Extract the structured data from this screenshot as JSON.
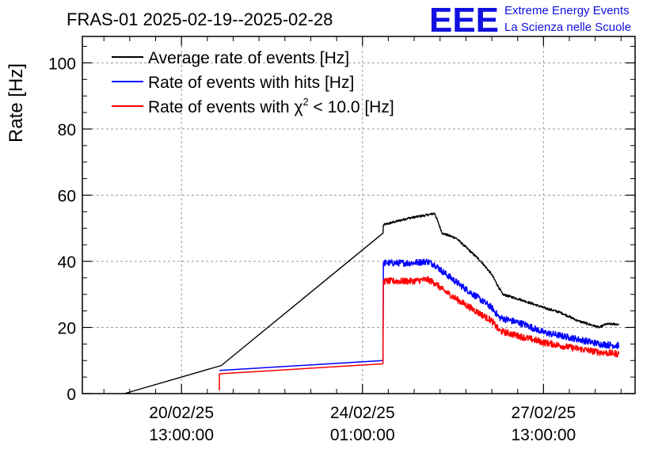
{
  "header": {
    "title": "FRAS-01 2025-02-19--2025-02-28",
    "logo_mark": "EEE",
    "logo_line1": "Extreme Energy Events",
    "logo_line2": "La Scienza nelle Scuole",
    "logo_color": "#1010e0"
  },
  "chart_data": {
    "type": "line",
    "ylabel": "Rate [Hz]",
    "ylim": [
      0,
      108
    ],
    "yticks": [
      0,
      20,
      40,
      60,
      80,
      100
    ],
    "xlim_hours": [
      0,
      256.5
    ],
    "xticks": [
      {
        "label_date": "20/02/25",
        "label_time": "13:00:00",
        "hours": 46
      },
      {
        "label_date": "24/02/25",
        "label_time": "01:00:00",
        "hours": 130
      },
      {
        "label_date": "27/02/25",
        "label_time": "13:00:00",
        "hours": 214
      }
    ],
    "grid": true,
    "legend_position": "top-left",
    "series": [
      {
        "name": "Average rate of events [Hz]",
        "name_pre": "Rate of events with ",
        "color": "#000000",
        "points": [
          [
            19.5,
            0
          ],
          [
            64.5,
            8.5
          ],
          [
            139.5,
            48.5
          ],
          [
            139.7,
            51
          ],
          [
            151,
            53
          ],
          [
            160,
            54
          ],
          [
            163.5,
            54.5
          ],
          [
            167,
            48.5
          ],
          [
            173.5,
            47
          ],
          [
            185,
            40
          ],
          [
            190,
            36
          ],
          [
            195,
            30
          ],
          [
            203,
            28.5
          ],
          [
            214,
            26
          ],
          [
            222,
            24.5
          ],
          [
            230,
            22
          ],
          [
            240,
            20
          ],
          [
            243,
            21
          ],
          [
            249,
            21
          ]
        ],
        "noise": 0.35
      },
      {
        "name": "Rate of events with hits [Hz]",
        "color": "#0000ff",
        "points": [
          [
            63.6,
            7
          ],
          [
            139.5,
            10
          ],
          [
            139.7,
            39.5
          ],
          [
            153,
            39.5
          ],
          [
            160,
            40
          ],
          [
            163.5,
            39
          ],
          [
            167,
            37
          ],
          [
            175,
            33
          ],
          [
            190,
            26
          ],
          [
            193.5,
            23
          ],
          [
            205,
            21
          ],
          [
            214,
            18.5
          ],
          [
            226,
            17
          ],
          [
            240,
            15
          ],
          [
            249,
            14.5
          ]
        ],
        "noise": 1.0
      },
      {
        "name": "Rate of events with χ² < 10.0 [Hz]",
        "color": "#ff0000",
        "points": [
          [
            63.6,
            1
          ],
          [
            63.6,
            6
          ],
          [
            139.5,
            9
          ],
          [
            139.7,
            34
          ],
          [
            153,
            34
          ],
          [
            160,
            34.5
          ],
          [
            163.5,
            33.5
          ],
          [
            167,
            31.5
          ],
          [
            175,
            28
          ],
          [
            190,
            22
          ],
          [
            193.5,
            19
          ],
          [
            205,
            17
          ],
          [
            214,
            15.5
          ],
          [
            226,
            14
          ],
          [
            240,
            12.5
          ],
          [
            249,
            12
          ]
        ],
        "noise": 1.0
      }
    ],
    "legend_entries": [
      {
        "text": "Average rate of events [Hz]",
        "color": "#000000"
      },
      {
        "text": "Rate of events with hits [Hz]",
        "color": "#0000ff"
      },
      {
        "text_pre": "Rate of events with ",
        "symbol": "χ",
        "superscript": "2",
        "text_post": " < 10.0 [Hz]",
        "color": "#ff0000"
      }
    ]
  }
}
